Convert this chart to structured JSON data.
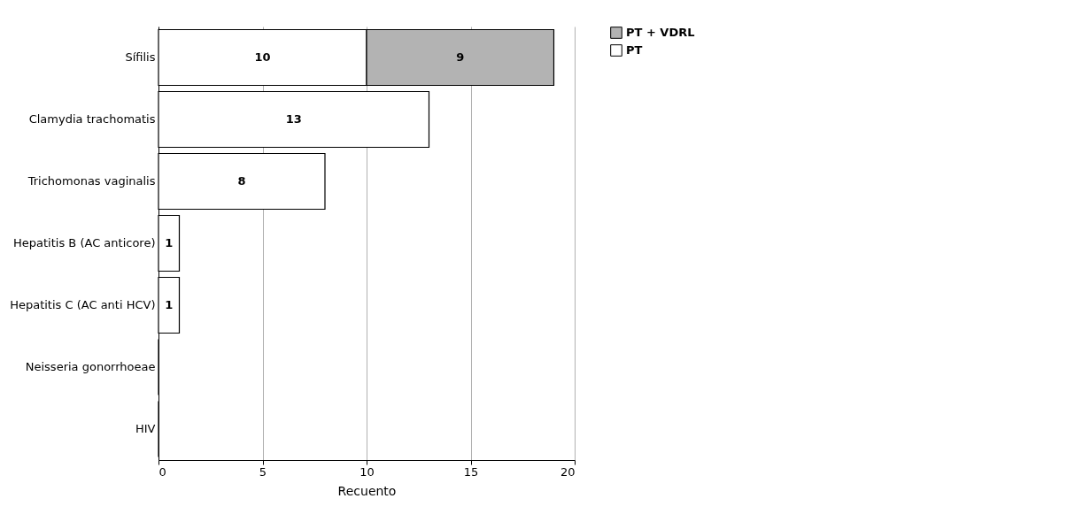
{
  "chart_data": {
    "type": "bar",
    "orientation": "horizontal",
    "stacked": true,
    "categories": [
      "Sífilis",
      "Clamydia trachomatis",
      "Trichomonas vaginalis",
      "Hepatitis B (AC anticore)",
      "Hepatitis C (AC anti HCV)",
      "Neisseria gonorrhoeae",
      "HIV"
    ],
    "series": [
      {
        "name": "PT",
        "color": "#ffffff",
        "values": [
          10,
          13,
          8,
          1,
          1,
          0,
          0
        ],
        "value_labels": [
          "10",
          "13",
          "8",
          "1",
          "1",
          null,
          null
        ]
      },
      {
        "name": "PT + VDRL",
        "color": "#b3b3b3",
        "values": [
          9,
          0,
          0,
          0,
          0,
          0,
          0
        ],
        "value_labels": [
          "9",
          null,
          null,
          null,
          null,
          null,
          null
        ]
      }
    ],
    "xlim": [
      0,
      20
    ],
    "xticks": [
      0,
      5,
      10,
      15,
      20
    ],
    "xlabel": "Recuento",
    "grid": "x",
    "legend": "top right"
  }
}
